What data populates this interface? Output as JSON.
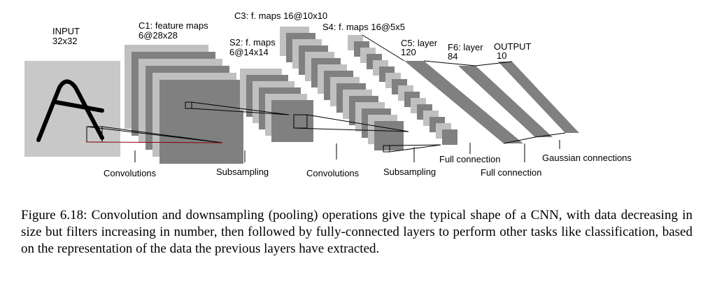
{
  "layers": {
    "input": {
      "name": "INPUT",
      "dims": "32x32"
    },
    "c1": {
      "name": "C1: feature maps",
      "dims": "6@28x28"
    },
    "s2": {
      "name": "S2: f. maps",
      "dims": "6@14x14"
    },
    "c3": {
      "name": "C3: f. maps 16@10x10"
    },
    "s4": {
      "name": "S4: f. maps 16@5x5"
    },
    "c5": {
      "name": "C5: layer",
      "dims": "120"
    },
    "f6": {
      "name": "F6: layer",
      "dims": "84"
    },
    "output": {
      "name": "OUTPUT",
      "dims": "10"
    }
  },
  "operations": {
    "conv1": "Convolutions",
    "sub1": "Subsampling",
    "conv2": "Convolutions",
    "sub2": "Subsampling",
    "full1": "Full connection",
    "full2": "Full connection",
    "gauss": "Gaussian connections"
  },
  "colors": {
    "light": "#c0c0c0",
    "dark": "#808080",
    "input_bg": "#c8c8c8",
    "stroke": "#000000"
  },
  "caption": "Figure 6.18: Convolution and downsampling (pooling) operations give the typical shape of a CNN, with data decreasing in size but filters increasing in number, then followed by fully-connected layers to perform other tasks like classification, based on the representation of the data the previous layers have extracted."
}
